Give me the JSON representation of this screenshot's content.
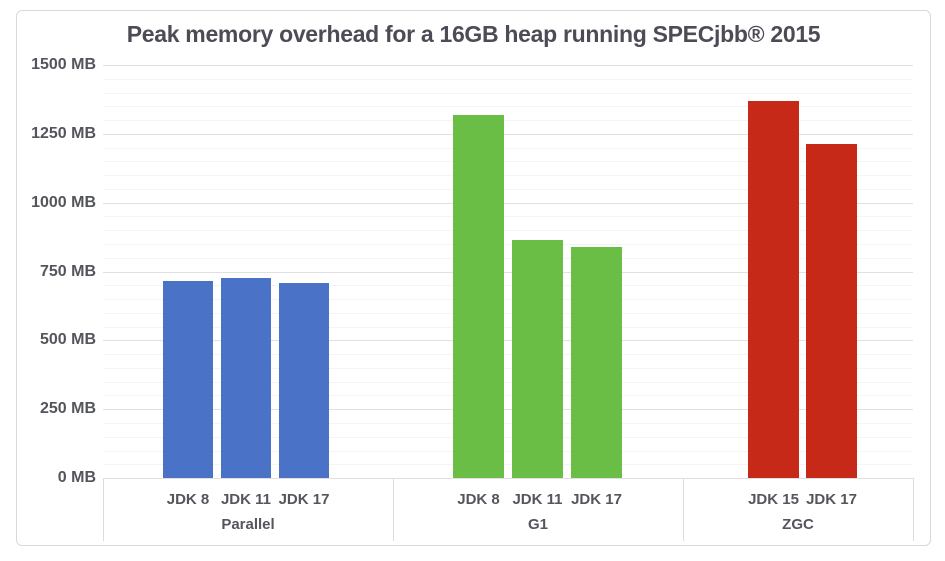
{
  "card": {
    "background": "#ffffff",
    "border_color": "#d9d9d9"
  },
  "chart_data": {
    "type": "bar",
    "title": "Peak memory overhead for a 16GB heap running SPECjbb® 2015",
    "unit": "MB",
    "ylim": [
      0,
      1500
    ],
    "y_tick_step": 250,
    "y_minor_step": 50,
    "y_tick_labels": [
      "0 MB",
      "250 MB",
      "500 MB",
      "750 MB",
      "1000 MB",
      "1250 MB",
      "1500 MB"
    ],
    "grid": true,
    "legend": "none",
    "categories_axis": "grouped",
    "groups": [
      {
        "name": "Parallel",
        "color": "#4A73C8",
        "bars": [
          {
            "label": "JDK 8",
            "value": 715
          },
          {
            "label": "JDK 11",
            "value": 725
          },
          {
            "label": "JDK 17",
            "value": 710
          }
        ]
      },
      {
        "name": "G1",
        "color": "#6ABD45",
        "bars": [
          {
            "label": "JDK 8",
            "value": 1320
          },
          {
            "label": "JDK 11",
            "value": 865
          },
          {
            "label": "JDK 17",
            "value": 840
          }
        ]
      },
      {
        "name": "ZGC",
        "color": "#C72918",
        "bars": [
          {
            "label": "JDK 15",
            "value": 1370
          },
          {
            "label": "JDK 17",
            "value": 1215
          }
        ]
      }
    ],
    "colors": {
      "title_text": "#4b4c55",
      "axis_text": "#54555c",
      "major_gridline": "#e0e0e0",
      "minor_gridline": "#f4f4f4",
      "axis_band_line": "#dcdcdc"
    }
  }
}
